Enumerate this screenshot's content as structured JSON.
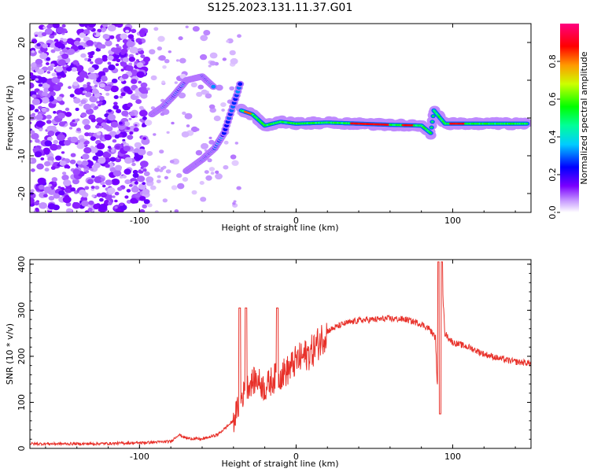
{
  "figure_title": "S125.2023.131.11.37.G01",
  "chart_data": [
    {
      "type": "heatmap",
      "xlabel": "Height of straight line (km)",
      "ylabel": "Frequency (Hz)",
      "xlim": [
        -170,
        150
      ],
      "ylim": [
        -25,
        25
      ],
      "x_ticks": [
        -100,
        0,
        100
      ],
      "y_ticks": [
        -20,
        -10,
        0,
        10,
        20
      ],
      "colorbar": {
        "label": "Normalized spectral amplitude",
        "range": [
          0,
          1
        ],
        "ticks": [
          0.0,
          0.2,
          0.4,
          0.6,
          0.8
        ],
        "colormap": "hsv-rainbow (white→violet→blue→cyan→green→yellow→red→magenta)"
      },
      "description_points": {
        "noise_region_x": [
          -170,
          -95
        ],
        "chirp_lower_branch": [
          [
            -70,
            -14
          ],
          [
            -60,
            -11
          ],
          [
            -52,
            -8
          ],
          [
            -46,
            -4
          ],
          [
            -42,
            1
          ],
          [
            -38,
            6
          ],
          [
            -35,
            10
          ]
        ],
        "chirp_upper_branch": [
          [
            -92,
            1
          ],
          [
            -85,
            3
          ],
          [
            -78,
            6
          ],
          [
            -70,
            10
          ],
          [
            -60,
            11
          ],
          [
            -52,
            8
          ]
        ],
        "main_trace": [
          [
            -35,
            2
          ],
          [
            -28,
            1
          ],
          [
            -20,
            -2
          ],
          [
            -10,
            -1
          ],
          [
            0,
            -1.5
          ],
          [
            20,
            -1.2
          ],
          [
            40,
            -1.5
          ],
          [
            60,
            -1.8
          ],
          [
            80,
            -2
          ],
          [
            86,
            -4
          ],
          [
            88,
            2
          ],
          [
            95,
            -1.5
          ],
          [
            120,
            -1.5
          ],
          [
            148,
            -1.5
          ]
        ]
      }
    },
    {
      "type": "line",
      "xlabel": "Height of straight line (km)",
      "ylabel": "SNR (10 * v/v)",
      "xlim": [
        -170,
        150
      ],
      "ylim": [
        0,
        410
      ],
      "x_ticks": [
        -100,
        0,
        100
      ],
      "y_ticks": [
        0,
        100,
        200,
        300,
        400
      ],
      "series": [
        {
          "name": "SNR",
          "color": "#e8312a",
          "x": [
            -170,
            -130,
            -100,
            -80,
            -75,
            -70,
            -60,
            -50,
            -45,
            -40,
            -35,
            -30,
            -25,
            -20,
            -15,
            -10,
            -5,
            0,
            10,
            20,
            30,
            40,
            50,
            60,
            70,
            80,
            85,
            89,
            90,
            91,
            92,
            93,
            95,
            100,
            110,
            120,
            130,
            140,
            150
          ],
          "values": [
            10,
            10,
            12,
            15,
            30,
            22,
            20,
            30,
            45,
            60,
            110,
            140,
            150,
            130,
            150,
            160,
            170,
            190,
            210,
            255,
            270,
            278,
            280,
            282,
            280,
            270,
            260,
            240,
            150,
            100,
            340,
            380,
            250,
            230,
            220,
            205,
            195,
            188,
            185
          ]
        }
      ],
      "spikes": [
        [
          -36,
          305
        ],
        [
          -32,
          305
        ],
        [
          -12,
          305
        ],
        [
          91,
          405
        ],
        [
          93,
          405
        ],
        [
          92,
          75
        ]
      ]
    }
  ]
}
